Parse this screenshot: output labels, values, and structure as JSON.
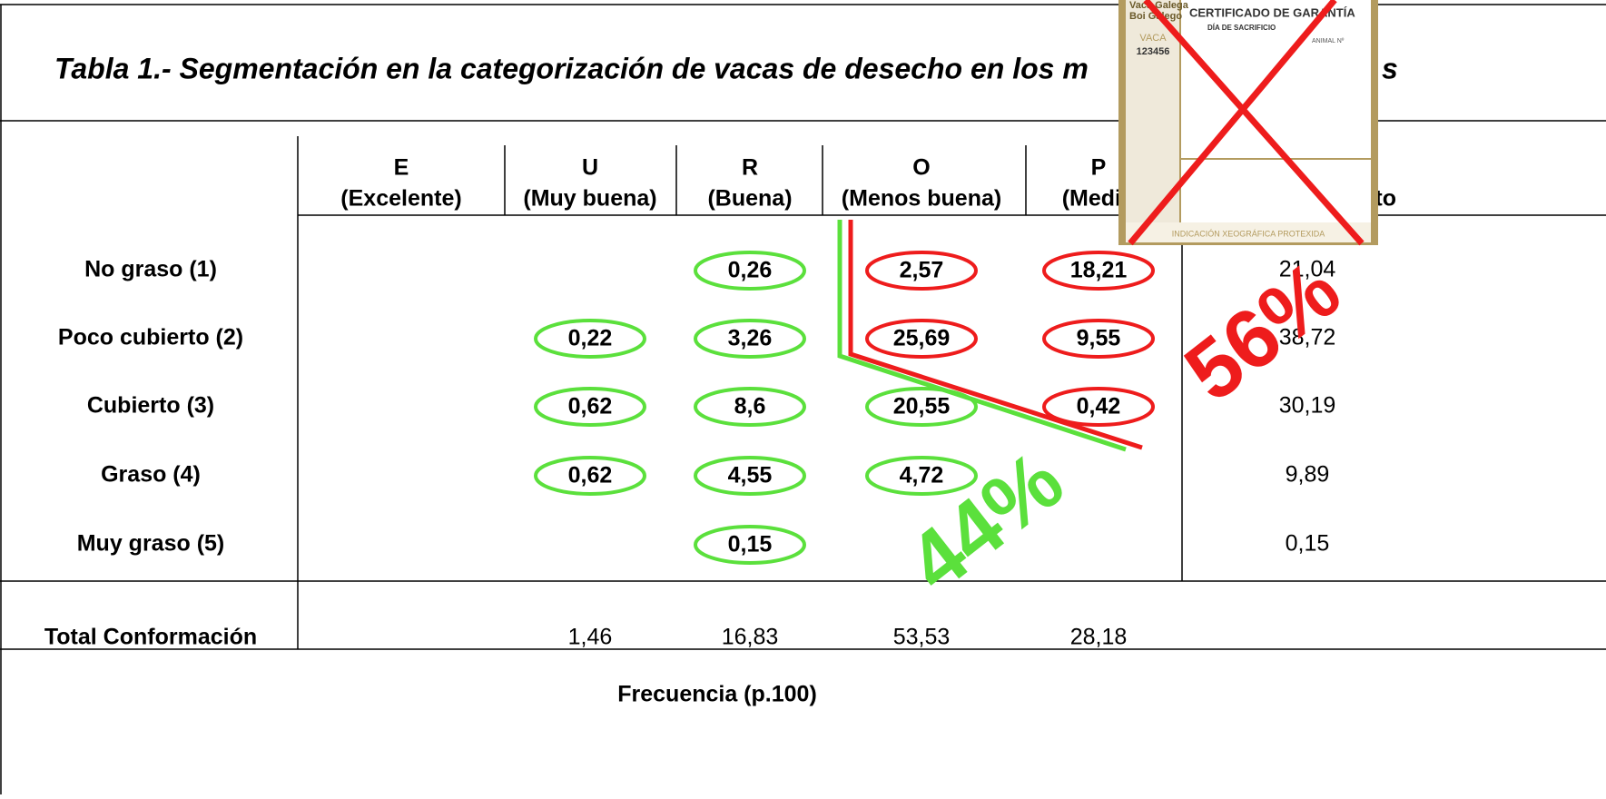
{
  "title_parts": [
    "Tabla 1.- Segmentación en la categorización de vacas de desecho en los m",
    "s"
  ],
  "table": {
    "header": [
      [
        "E",
        "(Excelente)"
      ],
      [
        "U",
        "(Muy buena)"
      ],
      [
        "R",
        "(Buena)"
      ],
      [
        "O",
        "(Menos buena)"
      ],
      [
        "P",
        "(Medio"
      ],
      [
        "to"
      ]
    ],
    "rows": [
      {
        "label": "No graso (1)",
        "cells": [
          null,
          null,
          {
            "text": "0,26",
            "circle": "#5be03c"
          },
          {
            "text": "2,57",
            "circle": "#ee1c1c"
          },
          {
            "text": "18,21",
            "circle": "#ee1c1c"
          }
        ],
        "total": "21,04"
      },
      {
        "label": "Poco cubierto (2)",
        "cells": [
          null,
          {
            "text": "0,22",
            "circle": "#5be03c"
          },
          {
            "text": "3,26",
            "circle": "#5be03c"
          },
          {
            "text": "25,69",
            "circle": "#ee1c1c"
          },
          {
            "text": "9,55",
            "circle": "#ee1c1c"
          }
        ],
        "total": "38,72"
      },
      {
        "label": "Cubierto (3)",
        "cells": [
          null,
          {
            "text": "0,62",
            "circle": "#5be03c"
          },
          {
            "text": "8,6",
            "circle": "#5be03c"
          },
          {
            "text": "20,55",
            "circle": "#5be03c"
          },
          {
            "text": "0,42",
            "circle": "#ee1c1c"
          }
        ],
        "total": "30,19"
      },
      {
        "label": "Graso (4)",
        "cells": [
          null,
          {
            "text": "0,62",
            "circle": "#5be03c"
          },
          {
            "text": "4,55",
            "circle": "#5be03c"
          },
          {
            "text": "4,72",
            "circle": "#5be03c"
          },
          null
        ],
        "total": "9,89"
      },
      {
        "label": "Muy graso (5)",
        "cells": [
          null,
          null,
          {
            "text": "0,15",
            "circle": "#5be03c"
          },
          null,
          null
        ],
        "total": "0,15"
      }
    ],
    "total_row": {
      "label": "Total Conformación",
      "cells": [
        null,
        "1,46",
        "16,83",
        "53,53",
        "28,18"
      ]
    },
    "footer": "Frecuencia (p.100)"
  },
  "annotations": [
    {
      "text": "56%",
      "color": "#ee1c1c"
    },
    {
      "text": "44%",
      "color": "#5be03c"
    }
  ],
  "certificate": {
    "brand": [
      "Vaca Galega",
      "Boi Galego"
    ],
    "heading": "CERTIFICADO DE GARANTÍA",
    "subheading": "DÍA DE SACRIFICIO",
    "animal": "ANIMAL Nº",
    "kind": "VACA",
    "number": "123456",
    "footer": "INDICACIÓN XEOGRÁFICA PROTEXIDA"
  }
}
